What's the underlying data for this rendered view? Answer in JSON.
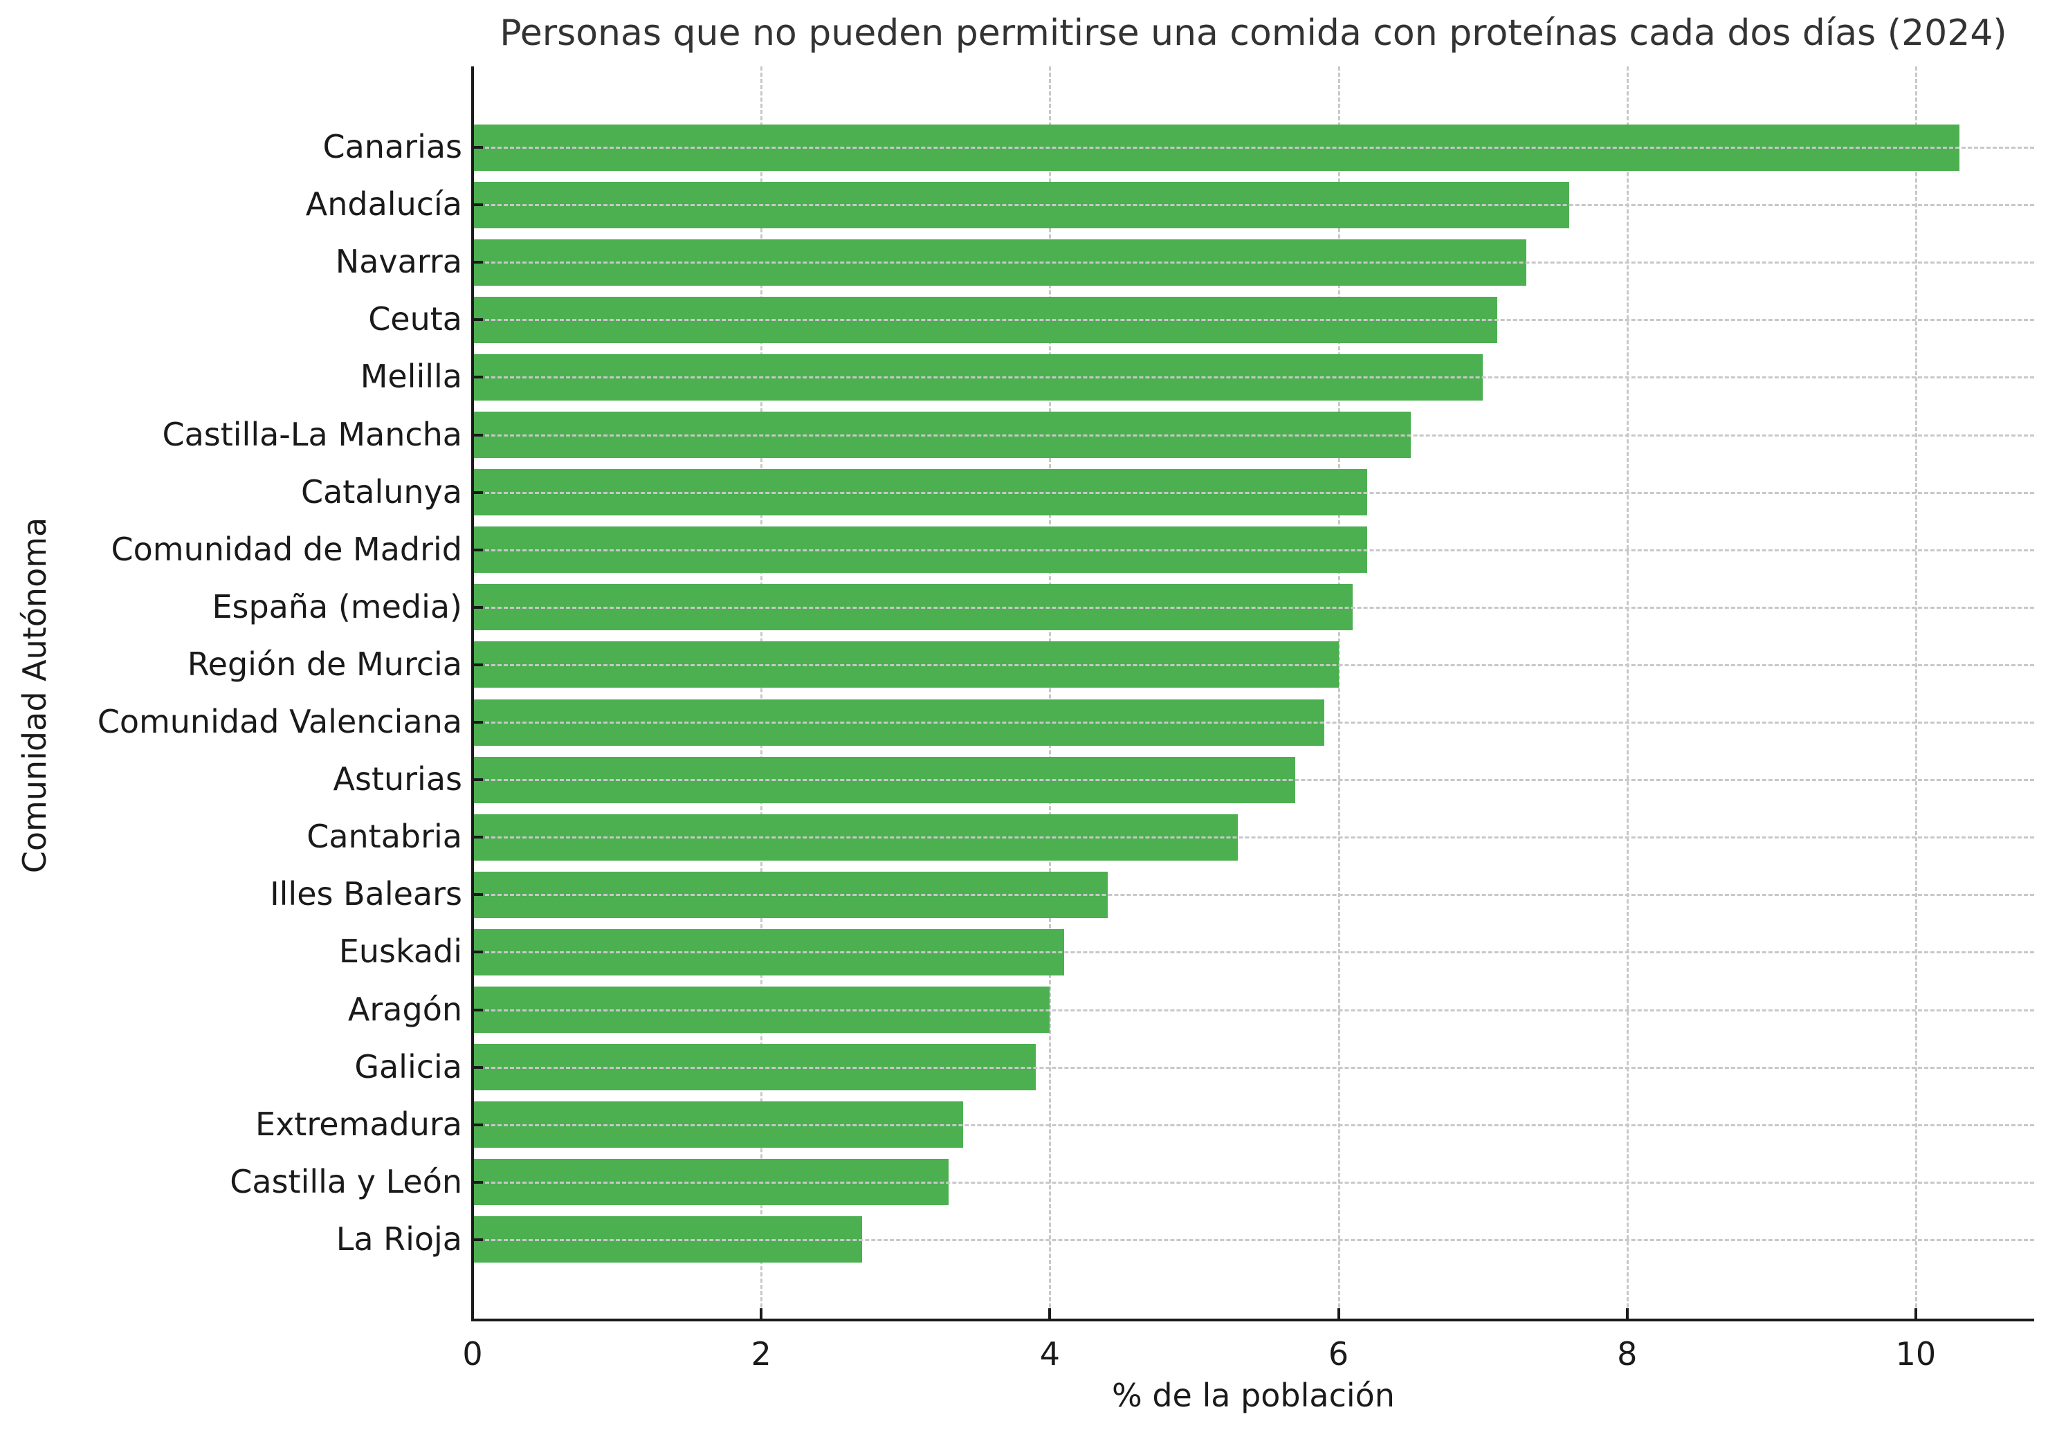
{
  "chart_data": {
    "type": "bar",
    "orientation": "horizontal",
    "title": "Personas que no pueden permitirse una comida con proteínas cada dos días (2024)",
    "xlabel": "% de la población",
    "ylabel": "Comunidad Autónoma",
    "categories": [
      "Canarias",
      "Andalucía",
      "Navarra",
      "Ceuta",
      "Melilla",
      "Castilla-La Mancha",
      "Catalunya",
      "Comunidad de Madrid",
      "España (media)",
      "Región de Murcia",
      "Comunidad Valenciana",
      "Asturias",
      "Cantabria",
      "Illes Balears",
      "Euskadi",
      "Aragón",
      "Galicia",
      "Extremadura",
      "Castilla y León",
      "La Rioja"
    ],
    "values": [
      10.3,
      7.6,
      7.3,
      7.1,
      7.0,
      6.5,
      6.2,
      6.2,
      6.1,
      6.0,
      5.9,
      5.7,
      5.3,
      4.4,
      4.1,
      4.0,
      3.9,
      3.4,
      3.3,
      2.7
    ],
    "xticks": [
      0,
      2,
      4,
      6,
      8,
      10
    ],
    "xlim": [
      0,
      10.82
    ],
    "grid": true,
    "grid_style": "dashed",
    "bar_color": "#4caf50",
    "legend": null
  },
  "colors": {
    "bar": "#4caf50",
    "grid": "#c8c8c8",
    "axis": "#1a1a1a",
    "title": "#333333"
  }
}
